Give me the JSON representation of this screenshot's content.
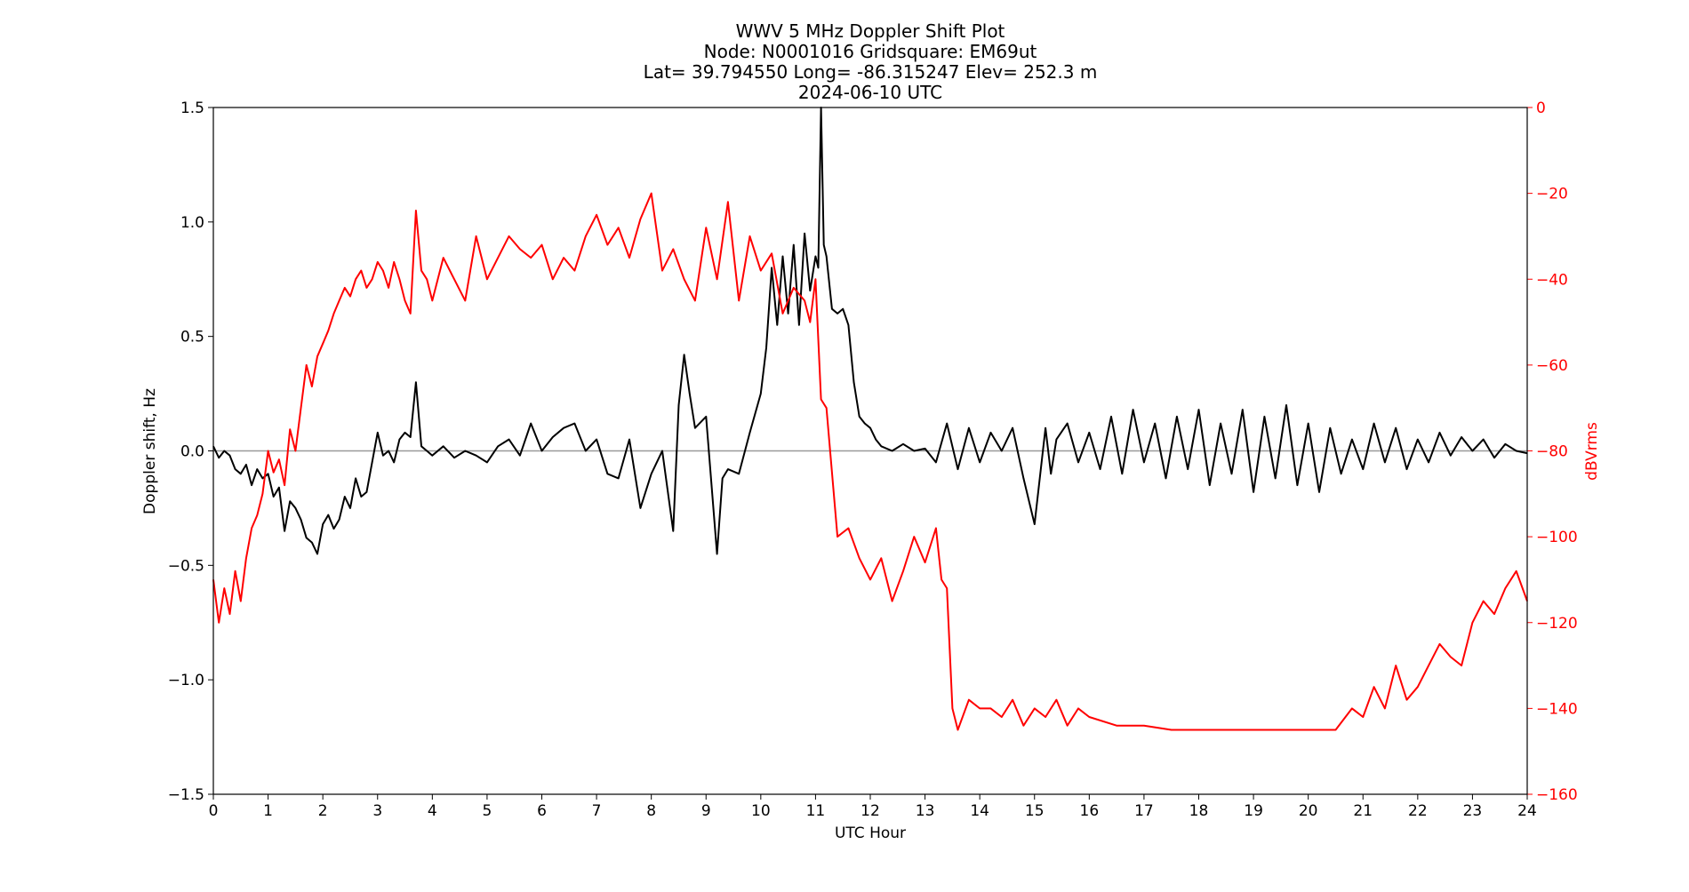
{
  "chart_data": {
    "type": "line",
    "title_lines": [
      "WWV 5 MHz Doppler Shift Plot",
      "Node:  N0001016     Gridsquare:  EM69ut",
      "Lat= 39.794550    Long= -86.315247    Elev= 252.3 m",
      "2024-06-10  UTC"
    ],
    "xlabel": "UTC Hour",
    "ylabel_left": "Doppler shift, Hz",
    "ylabel_right": "dBVrms",
    "xlim": [
      0,
      24
    ],
    "ylim_left": [
      -1.5,
      1.5
    ],
    "ylim_right": [
      -160,
      0
    ],
    "x_ticks": [
      "0",
      "1",
      "2",
      "3",
      "4",
      "5",
      "6",
      "7",
      "8",
      "9",
      "10",
      "11",
      "12",
      "13",
      "14",
      "15",
      "16",
      "17",
      "18",
      "19",
      "20",
      "21",
      "22",
      "23",
      "24"
    ],
    "y_ticks_left": [
      "1.5",
      "1.0",
      "0.5",
      "0.0",
      "−0.5",
      "−1.0",
      "−1.5"
    ],
    "y_tick_values_left": [
      1.5,
      1.0,
      0.5,
      0.0,
      -0.5,
      -1.0,
      -1.5
    ],
    "y_ticks_right": [
      "0",
      "−20",
      "−40",
      "−60",
      "−80",
      "−100",
      "−120",
      "−140",
      "−160"
    ],
    "y_tick_values_right": [
      0,
      -20,
      -40,
      -60,
      -80,
      -100,
      -120,
      -140,
      -160
    ],
    "zero_line": 0.0,
    "grid": false,
    "colors": {
      "doppler": "#000000",
      "power": "#ff0000",
      "zero_line": "#999999",
      "right_axis": "#ff0000"
    },
    "series": [
      {
        "axis": "left",
        "x": [
          0,
          0.1,
          0.2,
          0.3,
          0.4,
          0.5,
          0.6,
          0.7,
          0.8,
          0.9,
          1.0,
          1.1,
          1.2,
          1.3,
          1.4,
          1.5,
          1.6,
          1.7,
          1.8,
          1.9,
          2.0,
          2.1,
          2.2,
          2.3,
          2.4,
          2.5,
          2.6,
          2.7,
          2.8,
          2.9,
          3.0,
          3.1,
          3.2,
          3.3,
          3.4,
          3.5,
          3.6,
          3.7,
          3.8,
          3.9,
          4.0,
          4.2,
          4.4,
          4.6,
          4.8,
          5.0,
          5.2,
          5.4,
          5.6,
          5.8,
          6.0,
          6.2,
          6.4,
          6.6,
          6.8,
          7.0,
          7.2,
          7.4,
          7.6,
          7.8,
          8.0,
          8.2,
          8.4,
          8.5,
          8.6,
          8.7,
          8.8,
          9.0,
          9.2,
          9.3,
          9.4,
          9.6,
          9.8,
          10.0,
          10.1,
          10.2,
          10.3,
          10.4,
          10.5,
          10.6,
          10.7,
          10.8,
          10.9,
          11.0,
          11.05,
          11.1,
          11.15,
          11.2,
          11.3,
          11.4,
          11.5,
          11.6,
          11.7,
          11.8,
          11.9,
          12.0,
          12.1,
          12.2,
          12.4,
          12.6,
          12.8,
          13.0,
          13.2,
          13.4,
          13.6,
          13.8,
          14.0,
          14.2,
          14.4,
          14.6,
          14.8,
          15.0,
          15.2,
          15.3,
          15.4,
          15.6,
          15.8,
          16.0,
          16.2,
          16.4,
          16.6,
          16.8,
          17.0,
          17.2,
          17.4,
          17.6,
          17.8,
          18.0,
          18.2,
          18.4,
          18.6,
          18.8,
          19.0,
          19.2,
          19.4,
          19.6,
          19.8,
          20.0,
          20.2,
          20.4,
          20.6,
          20.8,
          21.0,
          21.2,
          21.4,
          21.6,
          21.8,
          22.0,
          22.2,
          22.4,
          22.6,
          22.8,
          23.0,
          23.2,
          23.4,
          23.6,
          23.8,
          24.0
        ],
        "values": [
          0.02,
          -0.03,
          0.0,
          -0.02,
          -0.08,
          -0.1,
          -0.06,
          -0.15,
          -0.08,
          -0.12,
          -0.1,
          -0.2,
          -0.16,
          -0.35,
          -0.22,
          -0.25,
          -0.3,
          -0.38,
          -0.4,
          -0.45,
          -0.32,
          -0.28,
          -0.34,
          -0.3,
          -0.2,
          -0.25,
          -0.12,
          -0.2,
          -0.18,
          -0.05,
          0.08,
          -0.02,
          0.0,
          -0.05,
          0.05,
          0.08,
          0.06,
          0.3,
          0.02,
          0.0,
          -0.02,
          0.02,
          -0.03,
          0.0,
          -0.02,
          -0.05,
          0.02,
          0.05,
          -0.02,
          0.12,
          0.0,
          0.06,
          0.1,
          0.12,
          0.0,
          0.05,
          -0.1,
          -0.12,
          0.05,
          -0.25,
          -0.1,
          0.0,
          -0.35,
          0.2,
          0.42,
          0.25,
          0.1,
          0.15,
          -0.45,
          -0.12,
          -0.08,
          -0.1,
          0.08,
          0.25,
          0.45,
          0.8,
          0.55,
          0.85,
          0.6,
          0.9,
          0.55,
          0.95,
          0.7,
          0.85,
          0.8,
          1.5,
          0.9,
          0.85,
          0.62,
          0.6,
          0.62,
          0.55,
          0.3,
          0.15,
          0.12,
          0.1,
          0.05,
          0.02,
          0.0,
          0.03,
          0.0,
          0.01,
          -0.05,
          0.12,
          -0.08,
          0.1,
          -0.05,
          0.08,
          0.0,
          0.1,
          -0.12,
          -0.32,
          0.1,
          -0.1,
          0.05,
          0.12,
          -0.05,
          0.08,
          -0.08,
          0.15,
          -0.1,
          0.18,
          -0.05,
          0.12,
          -0.12,
          0.15,
          -0.08,
          0.18,
          -0.15,
          0.12,
          -0.1,
          0.18,
          -0.18,
          0.15,
          -0.12,
          0.2,
          -0.15,
          0.12,
          -0.18,
          0.1,
          -0.1,
          0.05,
          -0.08,
          0.12,
          -0.05,
          0.1,
          -0.08,
          0.05,
          -0.05,
          0.08,
          -0.02,
          0.06,
          0.0,
          0.05,
          -0.03,
          0.03,
          0.0,
          -0.01
        ]
      },
      {
        "axis": "right",
        "x": [
          0,
          0.1,
          0.2,
          0.3,
          0.4,
          0.5,
          0.6,
          0.7,
          0.8,
          0.9,
          1.0,
          1.1,
          1.2,
          1.3,
          1.4,
          1.5,
          1.6,
          1.7,
          1.8,
          1.9,
          2.0,
          2.1,
          2.2,
          2.3,
          2.4,
          2.5,
          2.6,
          2.7,
          2.8,
          2.9,
          3.0,
          3.1,
          3.2,
          3.3,
          3.4,
          3.5,
          3.6,
          3.7,
          3.8,
          3.9,
          4.0,
          4.2,
          4.4,
          4.6,
          4.8,
          5.0,
          5.2,
          5.4,
          5.6,
          5.8,
          6.0,
          6.2,
          6.4,
          6.6,
          6.8,
          7.0,
          7.2,
          7.4,
          7.6,
          7.8,
          8.0,
          8.2,
          8.4,
          8.6,
          8.8,
          9.0,
          9.2,
          9.4,
          9.6,
          9.8,
          10.0,
          10.2,
          10.4,
          10.6,
          10.8,
          10.9,
          11.0,
          11.1,
          11.2,
          11.4,
          11.6,
          11.8,
          12.0,
          12.2,
          12.4,
          12.6,
          12.8,
          13.0,
          13.2,
          13.3,
          13.4,
          13.5,
          13.6,
          13.8,
          14.0,
          14.2,
          14.4,
          14.6,
          14.8,
          15.0,
          15.2,
          15.4,
          15.6,
          15.8,
          16.0,
          16.5,
          17.0,
          17.5,
          18.0,
          18.5,
          19.0,
          19.5,
          20.0,
          20.5,
          20.8,
          21.0,
          21.2,
          21.4,
          21.6,
          21.8,
          22.0,
          22.2,
          22.4,
          22.6,
          22.8,
          23.0,
          23.2,
          23.4,
          23.6,
          23.8,
          24.0
        ],
        "values": [
          -110,
          -120,
          -112,
          -118,
          -108,
          -115,
          -105,
          -98,
          -95,
          -90,
          -80,
          -85,
          -82,
          -88,
          -75,
          -80,
          -70,
          -60,
          -65,
          -58,
          -55,
          -52,
          -48,
          -45,
          -42,
          -44,
          -40,
          -38,
          -42,
          -40,
          -36,
          -38,
          -42,
          -36,
          -40,
          -45,
          -48,
          -24,
          -38,
          -40,
          -45,
          -35,
          -40,
          -45,
          -30,
          -40,
          -35,
          -30,
          -33,
          -35,
          -32,
          -40,
          -35,
          -38,
          -30,
          -25,
          -32,
          -28,
          -35,
          -26,
          -20,
          -38,
          -33,
          -40,
          -45,
          -28,
          -40,
          -22,
          -45,
          -30,
          -38,
          -34,
          -48,
          -42,
          -45,
          -50,
          -40,
          -68,
          -70,
          -100,
          -98,
          -105,
          -110,
          -105,
          -115,
          -108,
          -100,
          -106,
          -98,
          -110,
          -112,
          -140,
          -145,
          -138,
          -140,
          -140,
          -142,
          -138,
          -144,
          -140,
          -142,
          -138,
          -144,
          -140,
          -142,
          -144,
          -144,
          -145,
          -145,
          -145,
          -145,
          -145,
          -145,
          -145,
          -140,
          -142,
          -135,
          -140,
          -130,
          -138,
          -135,
          -130,
          -125,
          -128,
          -130,
          -120,
          -115,
          -118,
          -112,
          -108,
          -115
        ]
      }
    ]
  }
}
